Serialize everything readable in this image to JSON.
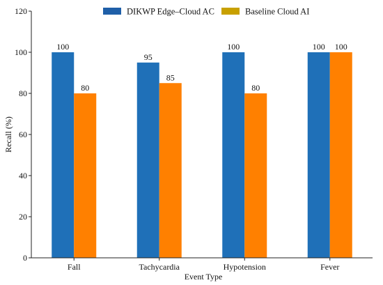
{
  "chart_data": {
    "type": "bar",
    "title": "",
    "xlabel": "Event Type",
    "ylabel": "Recall (%)",
    "categories": [
      "Fall",
      "Tachycardia",
      "Hypotension",
      "Fever"
    ],
    "ylim": [
      0,
      120
    ],
    "yticks": [
      0,
      20,
      40,
      60,
      80,
      100,
      120
    ],
    "grid": false,
    "legend_position": "top-center",
    "series": [
      {
        "name": "DIKWP Edge–Cloud AC",
        "values": [
          100,
          95,
          100,
          100
        ],
        "labels": [
          "100",
          "95",
          "100",
          "100"
        ],
        "color": "#1f70b8",
        "legend_color": "#1f5fa8"
      },
      {
        "name": "Baseline Cloud AI",
        "values": [
          80,
          85,
          80,
          100
        ],
        "labels": [
          "80",
          "85",
          "80",
          "100"
        ],
        "color": "#ff8000",
        "legend_color": "#c8a000"
      }
    ]
  }
}
